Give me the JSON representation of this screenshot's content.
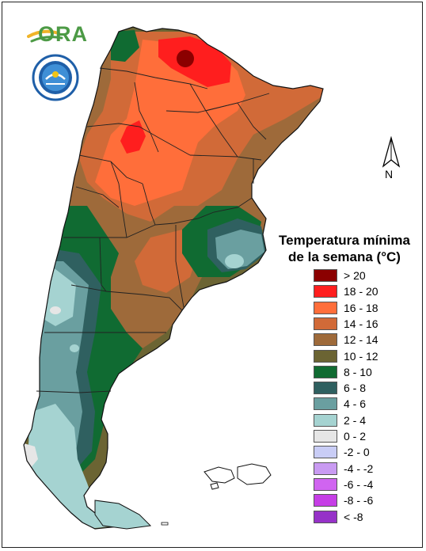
{
  "logo": {
    "ora_text": "ORA"
  },
  "north": {
    "label": "N"
  },
  "legend": {
    "title_line1": "Temperatura mínima",
    "title_line2": "de la semana (°C)",
    "items": [
      {
        "label": "> 20",
        "color": "#8b0000"
      },
      {
        "label": "18 - 20",
        "color": "#ff1e1e"
      },
      {
        "label": "16 - 18",
        "color": "#ff6e3a"
      },
      {
        "label": "14 - 16",
        "color": "#d16a38"
      },
      {
        "label": "12 - 14",
        "color": "#9e6a3a"
      },
      {
        "label": "10 - 12",
        "color": "#6b6433"
      },
      {
        "label": "8 - 10",
        "color": "#106b32"
      },
      {
        "label": "6 - 8",
        "color": "#2f6060"
      },
      {
        "label": "4 - 6",
        "color": "#6a9fa0"
      },
      {
        "label": "2 - 4",
        "color": "#a5d3d1"
      },
      {
        "label": "0 - 2",
        "color": "#e6e6e6"
      },
      {
        "label": "-2 - 0",
        "color": "#c9cdf6"
      },
      {
        "label": "-4 - -2",
        "color": "#c99bf2"
      },
      {
        "label": "-6 - -4",
        "color": "#d064f0"
      },
      {
        "label": "-8 - -6",
        "color": "#c63ee6"
      },
      {
        "label": "< -8",
        "color": "#9632c8"
      }
    ]
  }
}
